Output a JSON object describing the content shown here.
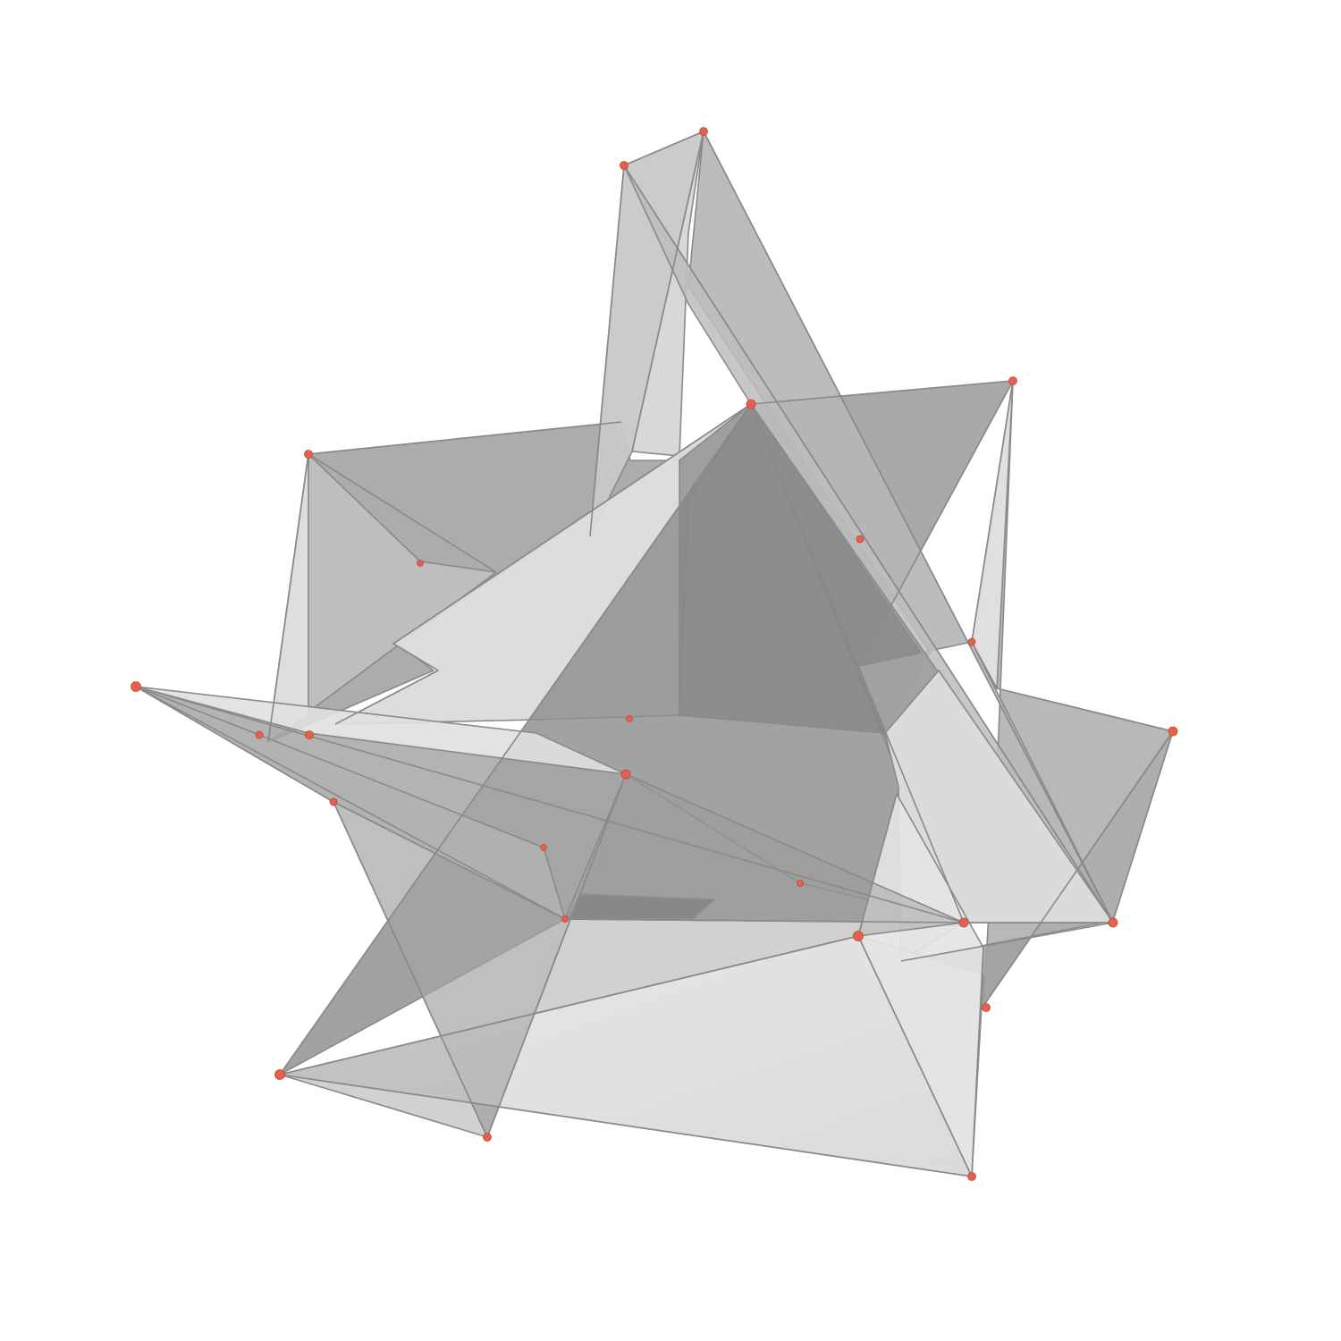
{
  "figure": {
    "subject": "polyhedron-compound",
    "face_color": "#9a9a9a",
    "edge_color": "#8a8a8a",
    "vertex_color": "#e8604c",
    "background_color": "#ffffff"
  }
}
